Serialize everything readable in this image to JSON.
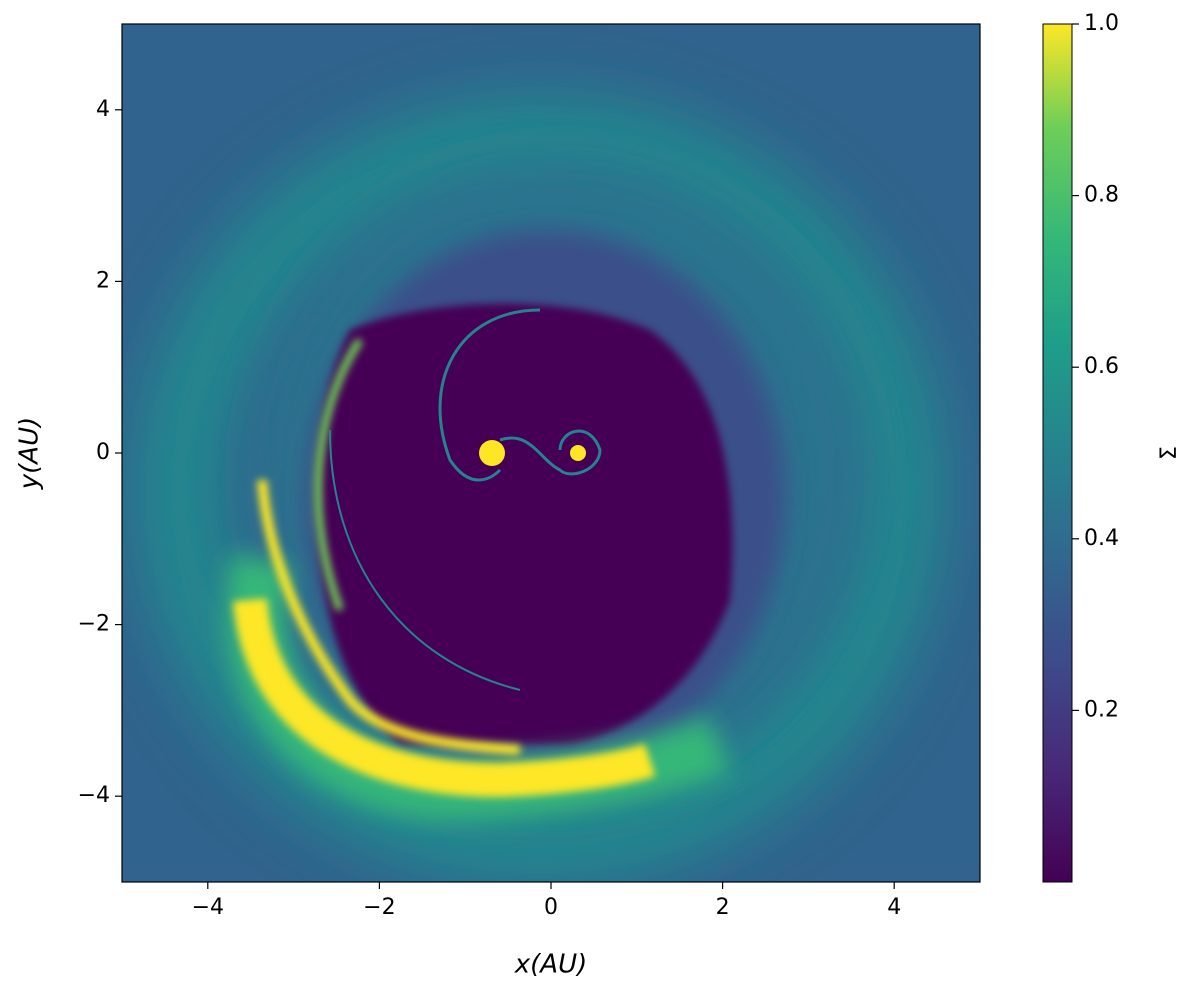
{
  "chart_data": {
    "type": "image",
    "xlabel": "x(AU)",
    "ylabel": "y(AU)",
    "xlim": [
      -5,
      5
    ],
    "ylim": [
      -5,
      5
    ],
    "xticks": [
      {
        "value": -4,
        "label": "−4"
      },
      {
        "value": -2,
        "label": "−2"
      },
      0,
      2,
      4
    ],
    "yticks": [
      {
        "value": -4,
        "label": "−4"
      },
      {
        "value": -2,
        "label": "−2"
      },
      0,
      2,
      4
    ],
    "colorbar": {
      "label": "Σ",
      "colormap": "viridis",
      "lim": [
        0,
        1
      ],
      "ticks": [
        0.2,
        0.4,
        0.6,
        0.8,
        {
          "value": 1,
          "label": "1.0"
        }
      ]
    }
  }
}
